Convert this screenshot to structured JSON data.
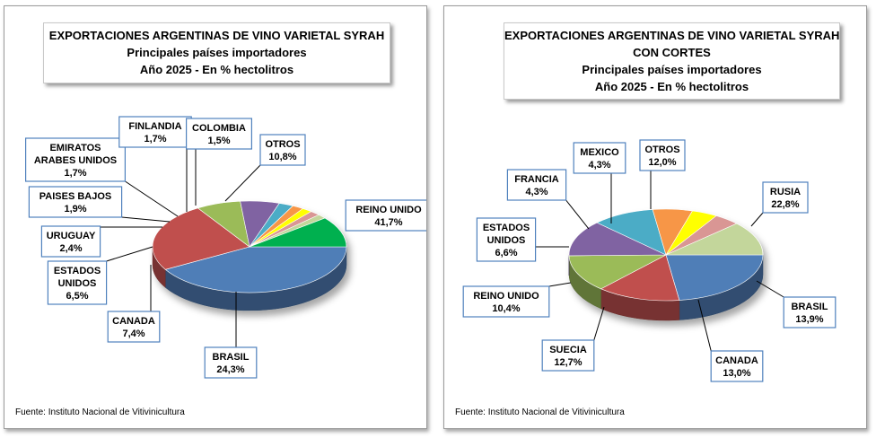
{
  "chart_data": [
    {
      "type": "pie",
      "title_lines": [
        "EXPORTACIONES ARGENTINAS DE VINO VARIETAL SYRAH",
        "Principales países importadores",
        "Año 2025 - En % hectolitros"
      ],
      "slices": [
        {
          "label": [
            "REINO UNIDO"
          ],
          "value_label": "41,7%",
          "value": 41.7,
          "color": "#4F7EB7"
        },
        {
          "label": [
            "BRASIL"
          ],
          "value_label": "24,3%",
          "value": 24.3,
          "color": "#C0504D"
        },
        {
          "label": [
            "CANADA"
          ],
          "value_label": "7,4%",
          "value": 7.4,
          "color": "#9BBB59"
        },
        {
          "label": [
            "ESTADOS",
            "UNIDOS"
          ],
          "value_label": "6,5%",
          "value": 6.5,
          "color": "#8064A2"
        },
        {
          "label": [
            "URUGUAY"
          ],
          "value_label": "2,4%",
          "value": 2.4,
          "color": "#4BACC6"
        },
        {
          "label": [
            "PAISES BAJOS"
          ],
          "value_label": "1,9%",
          "value": 1.9,
          "color": "#F79646"
        },
        {
          "label": [
            "EMIRATOS",
            "ARABES UNIDOS"
          ],
          "value_label": "1,7%",
          "value": 1.7,
          "color": "#FFFF00"
        },
        {
          "label": [
            "FINLANDIA"
          ],
          "value_label": "1,7%",
          "value": 1.7,
          "color": "#D99694"
        },
        {
          "label": [
            "COLOMBIA"
          ],
          "value_label": "1,5%",
          "value": 1.5,
          "color": "#C3D69B"
        },
        {
          "label": [
            "OTROS"
          ],
          "value_label": "10,8%",
          "value": 10.8,
          "color": "#00B050"
        }
      ],
      "source": "Fuente: Instituto Nacional de Vitivinicultura"
    },
    {
      "type": "pie",
      "title_lines": [
        "EXPORTACIONES ARGENTINAS DE VINO VARIETAL SYRAH",
        "CON CORTES",
        "Principales países importadores",
        "Año 2025 - En % hectolitros"
      ],
      "slices": [
        {
          "label": [
            "RUSIA"
          ],
          "value_label": "22,8%",
          "value": 22.8,
          "color": "#4F7EB7"
        },
        {
          "label": [
            "BRASIL"
          ],
          "value_label": "13,9%",
          "value": 13.9,
          "color": "#C0504D"
        },
        {
          "label": [
            "CANADA"
          ],
          "value_label": "13,0%",
          "value": 13.0,
          "color": "#9BBB59"
        },
        {
          "label": [
            "SUECIA"
          ],
          "value_label": "12,7%",
          "value": 12.7,
          "color": "#8064A2"
        },
        {
          "label": [
            "REINO UNIDO"
          ],
          "value_label": "10,4%",
          "value": 10.4,
          "color": "#4BACC6"
        },
        {
          "label": [
            "ESTADOS",
            "UNIDOS"
          ],
          "value_label": "6,6%",
          "value": 6.6,
          "color": "#F79646"
        },
        {
          "label": [
            "FRANCIA"
          ],
          "value_label": "4,3%",
          "value": 4.3,
          "color": "#FFFF00"
        },
        {
          "label": [
            "MEXICO"
          ],
          "value_label": "4,3%",
          "value": 4.3,
          "color": "#D99694"
        },
        {
          "label": [
            "OTROS"
          ],
          "value_label": "12,0%",
          "value": 12.0,
          "color": "#C3D69B"
        }
      ],
      "source": "Fuente: Instituto Nacional de Vitivinicultura"
    }
  ]
}
